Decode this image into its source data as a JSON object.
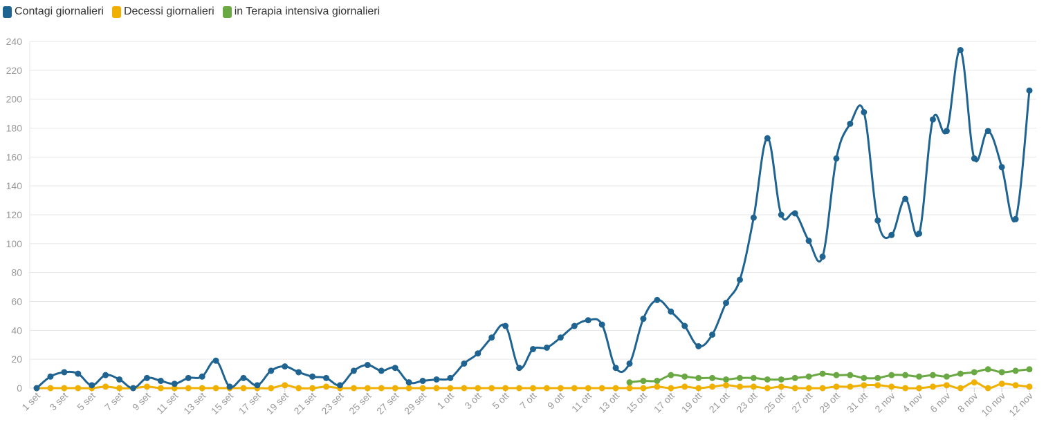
{
  "chart_data": {
    "type": "line",
    "title": "",
    "xlabel": "",
    "ylabel": "",
    "ylim": [
      0,
      240
    ],
    "yticks": [
      0,
      20,
      40,
      60,
      80,
      100,
      120,
      140,
      160,
      180,
      200,
      220,
      240
    ],
    "grid": true,
    "legend_position": "top-left",
    "x": [
      "1 set",
      "2 set",
      "3 set",
      "4 set",
      "5 set",
      "6 set",
      "7 set",
      "8 set",
      "9 set",
      "10 set",
      "11 set",
      "12 set",
      "13 set",
      "14 set",
      "15 set",
      "16 set",
      "17 set",
      "18 set",
      "19 set",
      "20 set",
      "21 set",
      "22 set",
      "23 set",
      "24 set",
      "25 set",
      "26 set",
      "27 set",
      "28 set",
      "29 set",
      "30 set",
      "1 ott",
      "2 ott",
      "3 ott",
      "4 ott",
      "5 ott",
      "6 ott",
      "7 ott",
      "8 ott",
      "9 ott",
      "10 ott",
      "11 ott",
      "12 ott",
      "13 ott",
      "14 ott",
      "15 ott",
      "16 ott",
      "17 ott",
      "18 ott",
      "19 ott",
      "20 ott",
      "21 ott",
      "22 ott",
      "23 ott",
      "24 ott",
      "25 ott",
      "26 ott",
      "27 ott",
      "28 ott",
      "29 ott",
      "30 ott",
      "31 ott",
      "1 nov",
      "2 nov",
      "3 nov",
      "4 nov",
      "5 nov",
      "6 nov",
      "7 nov",
      "8 nov",
      "9 nov",
      "10 nov",
      "11 nov",
      "12 nov"
    ],
    "xtick_labels": [
      "1 set",
      "3 set",
      "5 set",
      "7 set",
      "9 set",
      "11 set",
      "13 set",
      "15 set",
      "17 set",
      "19 set",
      "21 set",
      "23 set",
      "25 set",
      "27 set",
      "29 set",
      "1 ott",
      "3 ott",
      "5 ott",
      "7 ott",
      "9 ott",
      "11 ott",
      "13 ott",
      "15 ott",
      "17 ott",
      "19 ott",
      "21 ott",
      "23 ott",
      "25 ott",
      "27 ott",
      "29 ott",
      "31 ott",
      "2 nov",
      "4 nov",
      "6 nov",
      "8 nov",
      "10 nov",
      "12 nov"
    ],
    "series": [
      {
        "name": "Contagi giornalieri",
        "color": "#1f6391",
        "values": [
          0,
          8,
          11,
          10,
          2,
          9,
          6,
          0,
          7,
          5,
          3,
          7,
          8,
          19,
          1,
          7,
          2,
          12,
          15,
          11,
          8,
          7,
          2,
          12,
          16,
          12,
          14,
          4,
          5,
          6,
          7,
          17,
          24,
          35,
          43,
          14,
          27,
          28,
          35,
          43,
          47,
          44,
          14,
          17,
          48,
          61,
          53,
          43,
          29,
          37,
          59,
          75,
          118,
          173,
          120,
          121,
          102,
          91,
          159,
          183,
          191,
          116,
          106,
          131,
          107,
          186,
          178,
          234,
          159,
          178,
          153,
          117,
          206
        ]
      },
      {
        "name": "Decessi giornalieri",
        "color": "#f0b000",
        "values": [
          0,
          0,
          0,
          0,
          0,
          1,
          0,
          0,
          1,
          0,
          0,
          0,
          0,
          0,
          0,
          0,
          0,
          0,
          2,
          0,
          0,
          1,
          0,
          0,
          0,
          0,
          0,
          0,
          0,
          0,
          0,
          0,
          0,
          0,
          0,
          0,
          0,
          0,
          0,
          0,
          0,
          0,
          0,
          0,
          0,
          1,
          0,
          1,
          0,
          1,
          2,
          1,
          1,
          0,
          1,
          0,
          0,
          0,
          1,
          1,
          2,
          2,
          1,
          0,
          0,
          1,
          2,
          0,
          4,
          0,
          3,
          2,
          1
        ]
      },
      {
        "name": "in Terapia intensiva giornalieri",
        "color": "#6aa843",
        "values": [
          null,
          null,
          null,
          null,
          null,
          null,
          null,
          null,
          null,
          null,
          null,
          null,
          null,
          null,
          null,
          null,
          null,
          null,
          null,
          null,
          null,
          null,
          null,
          null,
          null,
          null,
          null,
          null,
          null,
          null,
          null,
          null,
          null,
          null,
          null,
          null,
          null,
          null,
          null,
          null,
          null,
          null,
          null,
          4,
          5,
          5,
          9,
          8,
          7,
          7,
          6,
          7,
          7,
          6,
          6,
          7,
          8,
          10,
          9,
          9,
          7,
          7,
          9,
          9,
          8,
          9,
          8,
          10,
          11,
          13,
          11,
          12,
          13
        ]
      }
    ]
  }
}
